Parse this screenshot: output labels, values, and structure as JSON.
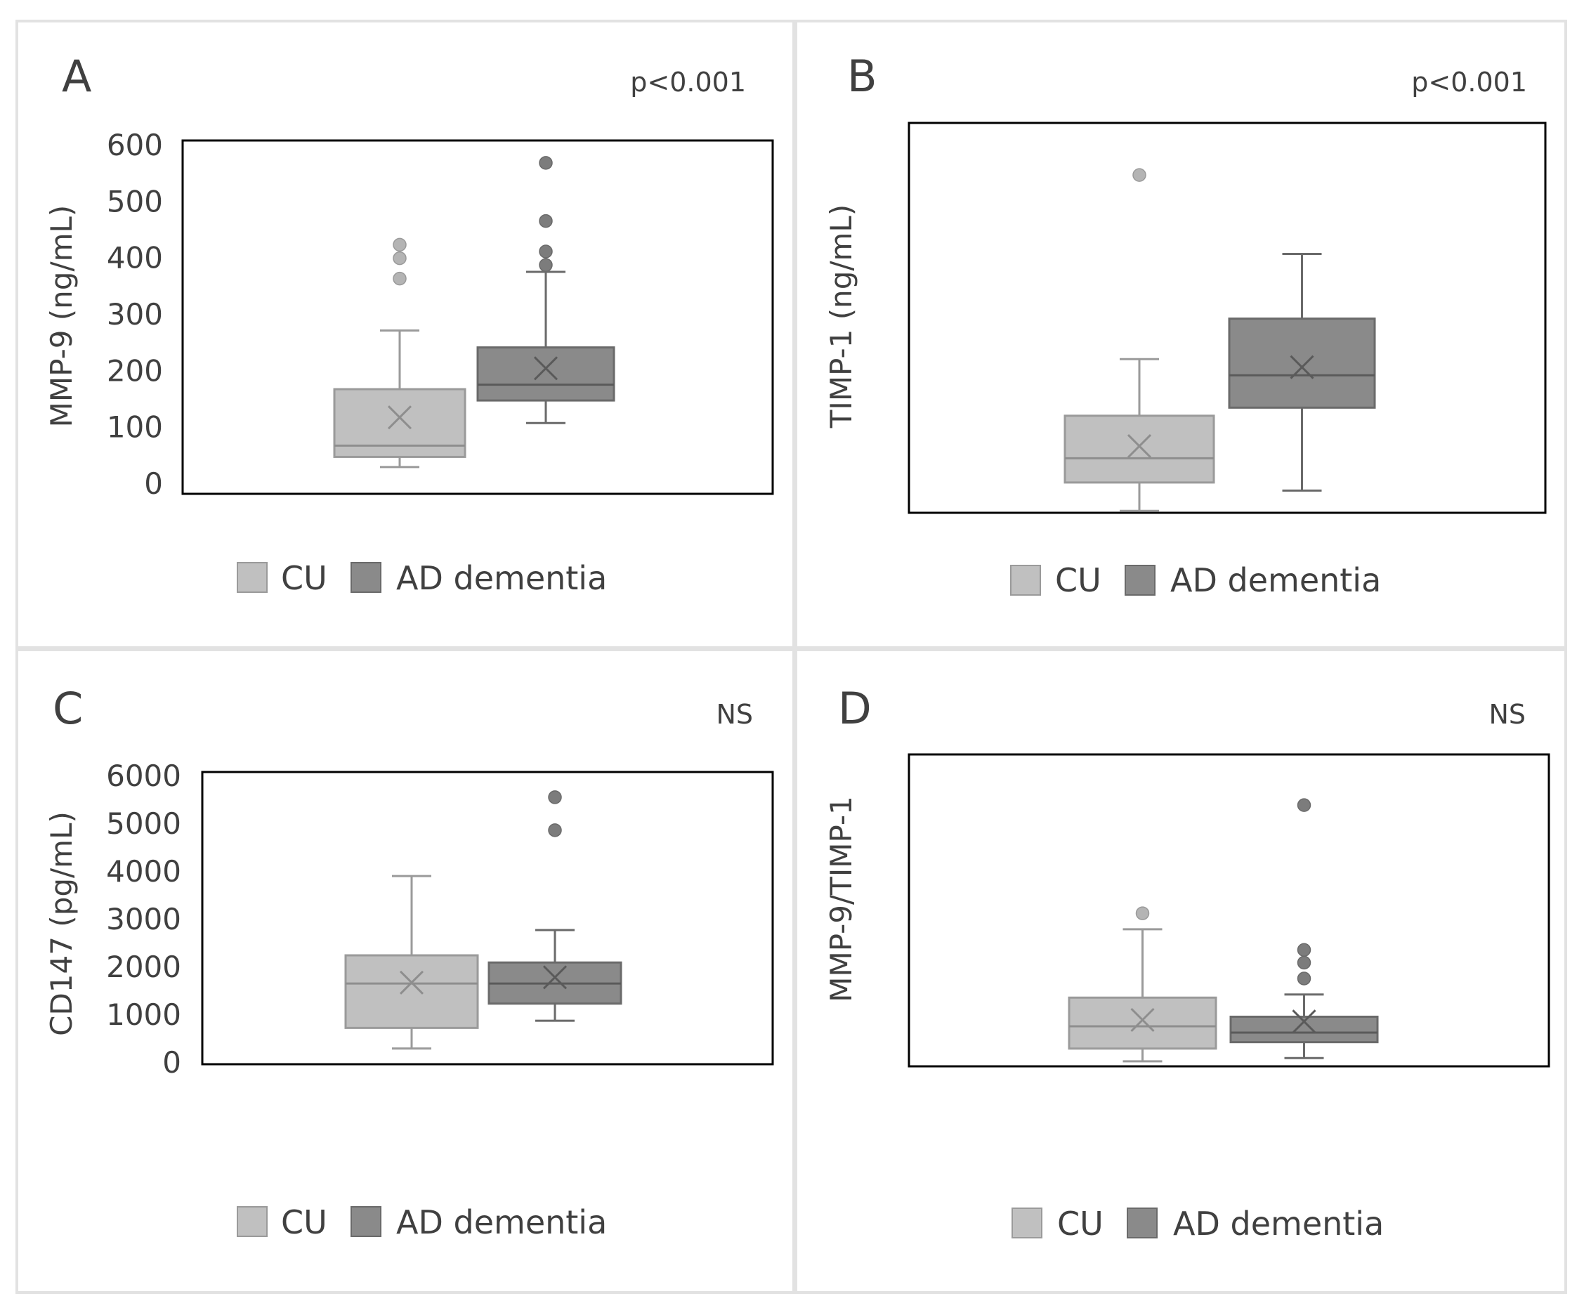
{
  "figure": {
    "legend": [
      {
        "label": "CU",
        "color": "#c0c0c0"
      },
      {
        "label": "AD dementia",
        "color": "#8a8a8a"
      }
    ]
  },
  "chart_data": [
    {
      "type": "box",
      "panel": "A",
      "significance": "p<0.001",
      "ylabel": "MMP-9 (ng/mL)",
      "ylim": [
        0,
        600
      ],
      "yticks": [
        0,
        100,
        200,
        300,
        400,
        500,
        600
      ],
      "show_tick_labels": true,
      "categories": [
        "CU",
        "AD dementia"
      ],
      "boxes": [
        {
          "name": "CU",
          "min": 30,
          "q1": 48,
          "median": 68,
          "q3": 168,
          "max": 272,
          "mean": 118,
          "outliers": [
            364,
            400,
            424
          ]
        },
        {
          "name": "AD dementia",
          "min": 108,
          "q1": 148,
          "median": 176,
          "q3": 242,
          "max": 376,
          "mean": 205,
          "outliers": [
            388,
            412,
            466,
            569
          ]
        }
      ]
    },
    {
      "type": "box",
      "panel": "B",
      "significance": "p<0.001",
      "ylabel": "TIMP-1 (ng/mL)",
      "ylim": [
        0,
        100
      ],
      "yticks": [],
      "show_tick_labels": false,
      "categories": [
        "CU",
        "AD dementia"
      ],
      "boxes": [
        {
          "name": "CU",
          "min": 5,
          "q1": 12,
          "median": 18,
          "q3": 28.5,
          "max": 42.5,
          "mean": 21,
          "outliers": [
            88
          ]
        },
        {
          "name": "AD dementia",
          "min": 10,
          "q1": 30.5,
          "median": 38.5,
          "q3": 52.5,
          "max": 68.5,
          "mean": 40.5,
          "outliers": []
        }
      ]
    },
    {
      "type": "box",
      "panel": "C",
      "significance": "NS",
      "ylabel": "CD147 (pg/mL)",
      "ylim": [
        0,
        6000
      ],
      "yticks": [
        0,
        1000,
        2000,
        3000,
        4000,
        5000,
        6000
      ],
      "show_tick_labels": true,
      "categories": [
        "CU",
        "AD dementia"
      ],
      "boxes": [
        {
          "name": "CU",
          "min": 300,
          "q1": 730,
          "median": 1660,
          "q3": 2250,
          "max": 3910,
          "mean": 1680,
          "outliers": []
        },
        {
          "name": "AD dementia",
          "min": 880,
          "q1": 1240,
          "median": 1660,
          "q3": 2100,
          "max": 2780,
          "mean": 1790,
          "outliers": [
            4870,
            5560
          ]
        }
      ]
    },
    {
      "type": "box",
      "panel": "D",
      "significance": "NS",
      "ylabel": "MMP-9/TIMP-1",
      "ylim": [
        0,
        100
      ],
      "yticks": [],
      "show_tick_labels": false,
      "categories": [
        "CU",
        "AD dementia"
      ],
      "boxes": [
        {
          "name": "CU",
          "min": 6,
          "q1": 10,
          "median": 17,
          "q3": 26,
          "max": 47.5,
          "mean": 19,
          "outliers": [
            52.5
          ]
        },
        {
          "name": "AD dementia",
          "min": 7,
          "q1": 12,
          "median": 15,
          "q3": 20,
          "max": 27,
          "mean": 18.5,
          "outliers": [
            32,
            37,
            41,
            86.5
          ]
        }
      ]
    }
  ]
}
